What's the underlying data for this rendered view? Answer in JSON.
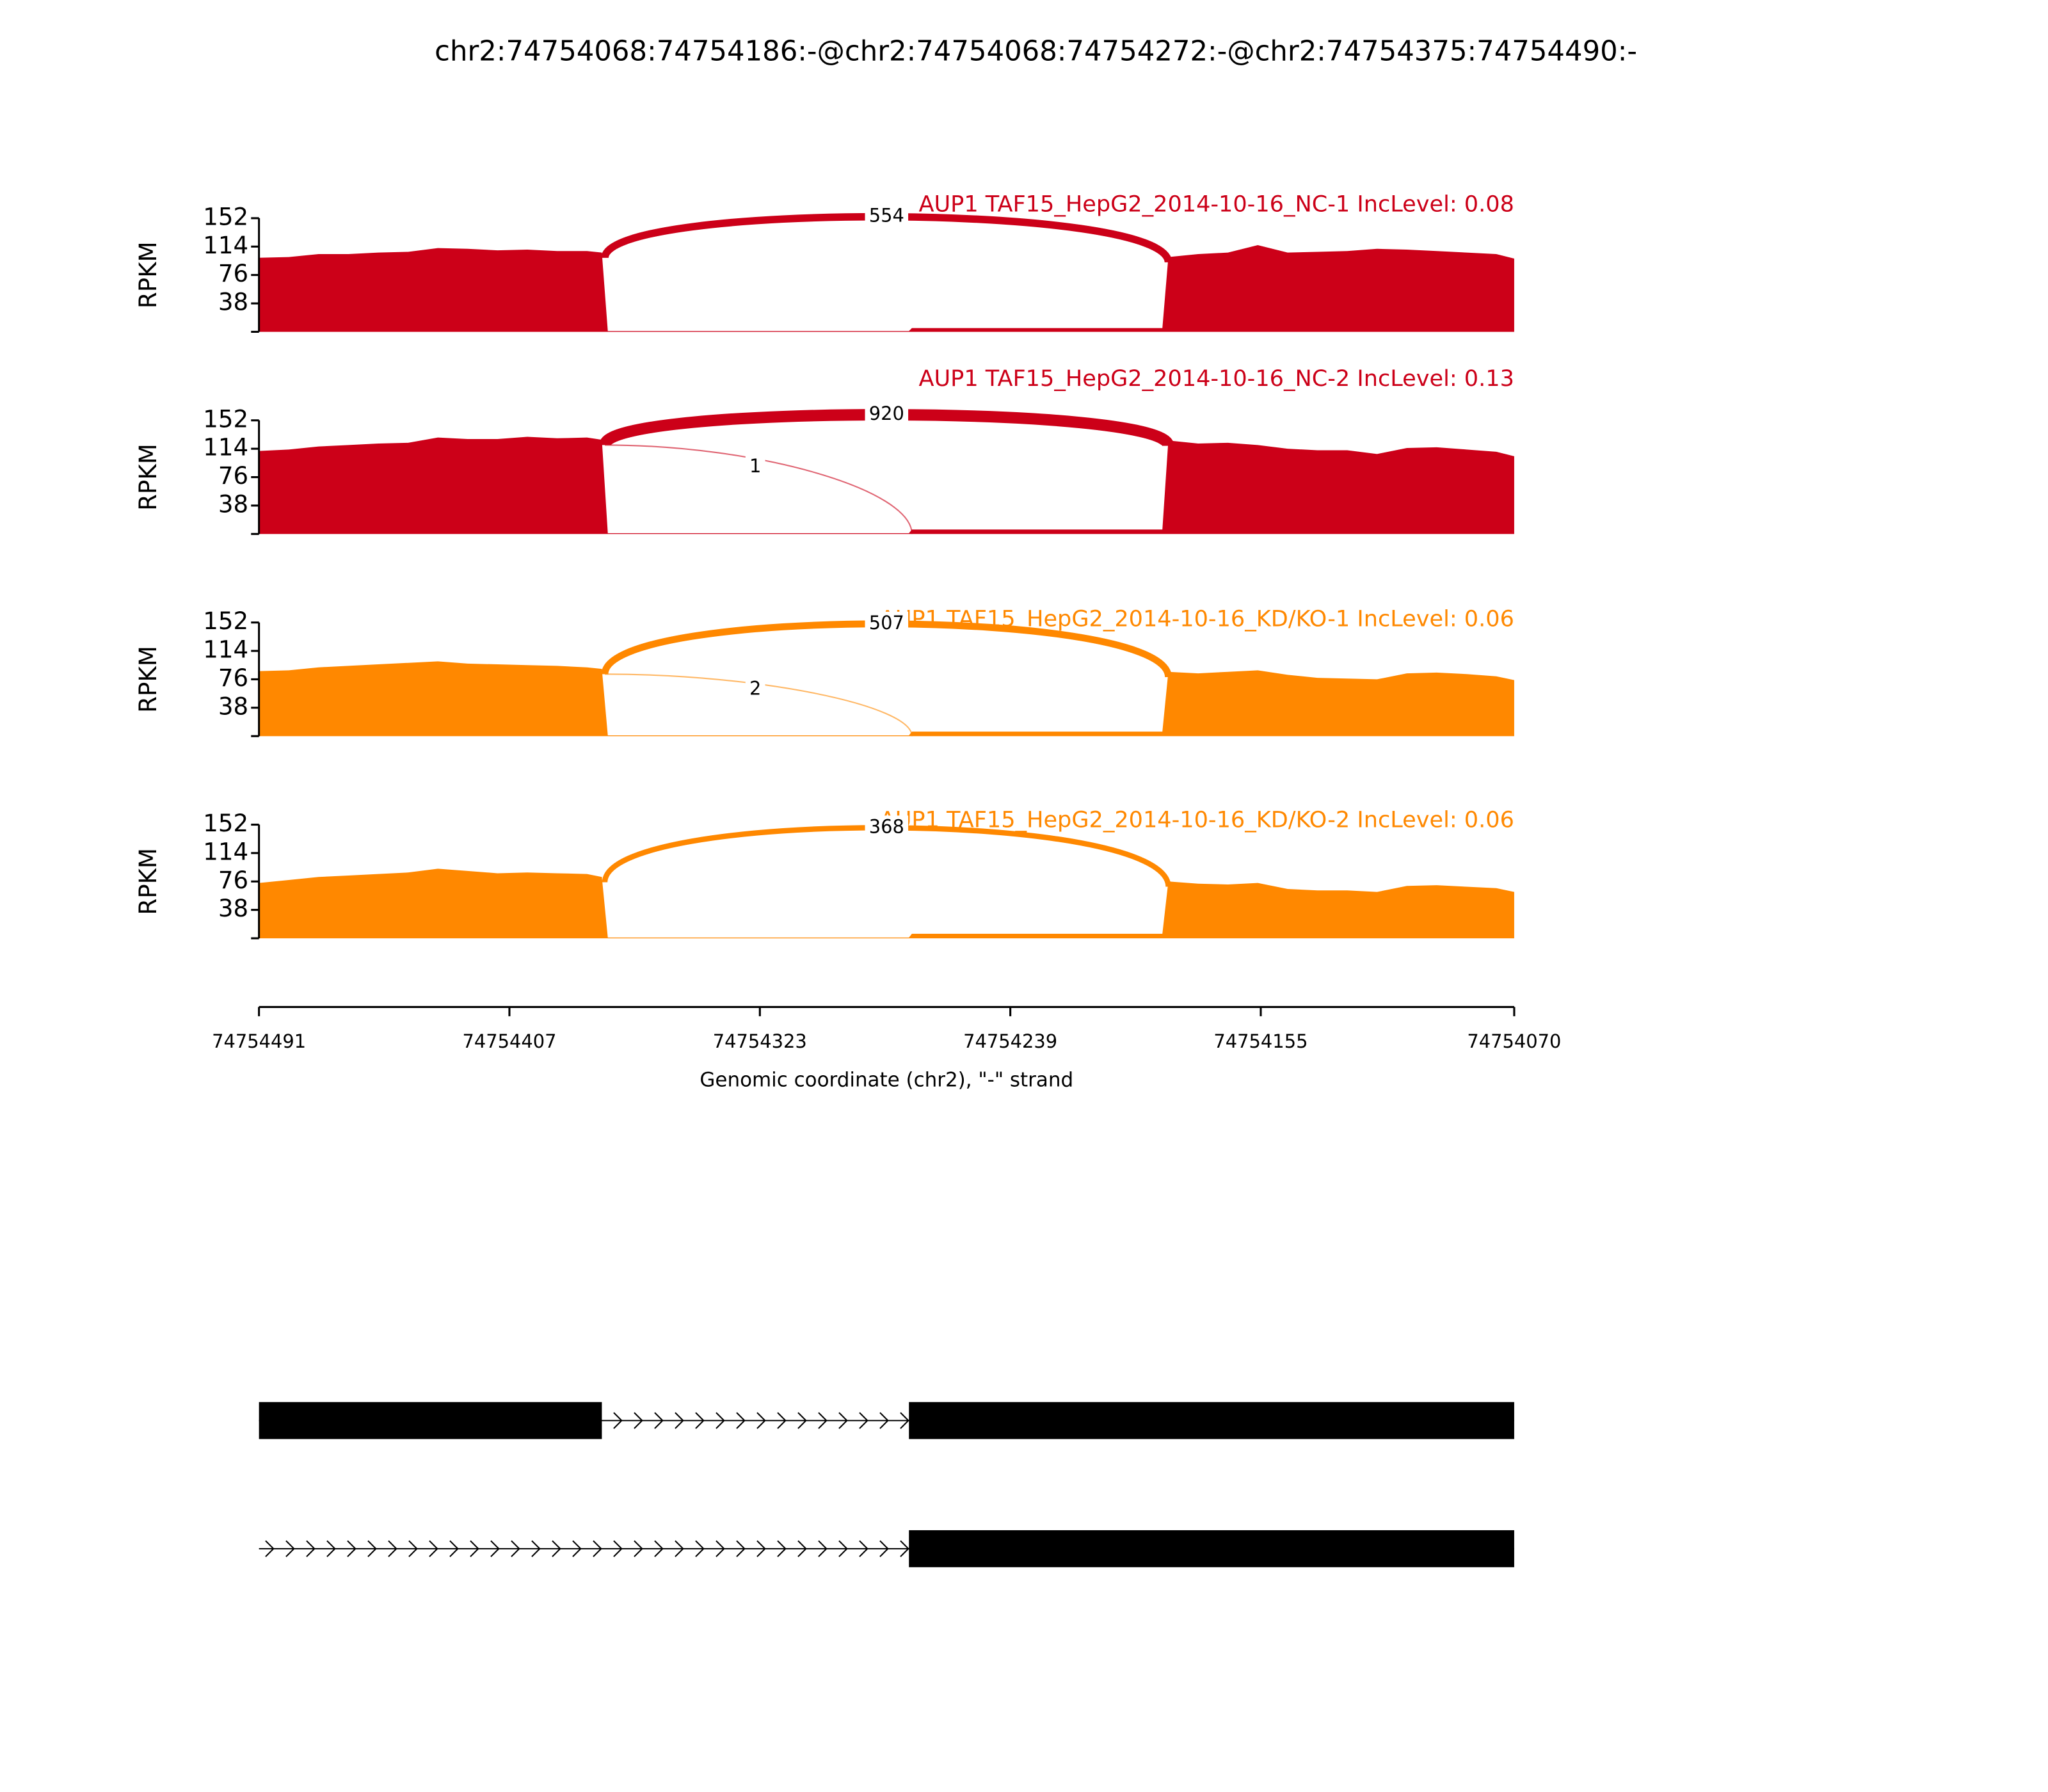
{
  "chart_data": {
    "type": "sashimi",
    "title": "chr2:74754068:74754186:-@chr2:74754068:74754272:-@chr2:74754375:74754490:-",
    "xlabel": "Genomic coordinate (chr2), \"-\" strand",
    "xlim": [
      74754491,
      74754070
    ],
    "xticks": [
      74754491,
      74754407,
      74754323,
      74754239,
      74754155,
      74754070
    ],
    "ylabel": "RPKM",
    "x": [
      74754491,
      74754481,
      74754471,
      74754461,
      74754451,
      74754441,
      74754431,
      74754421,
      74754411,
      74754401,
      74754391,
      74754381,
      74754376,
      74754374,
      74754330,
      74754290,
      74754273,
      74754272,
      74754230,
      74754188,
      74754186,
      74754176,
      74754166,
      74754156,
      74754146,
      74754136,
      74754126,
      74754116,
      74754106,
      74754096,
      74754086,
      74754076,
      74754070
    ],
    "tracks": [
      {
        "name": "AUP1 TAF15_HepG2_2014-10-16_NC-1 IncLevel: 0.08",
        "color": "#cc0018",
        "ylim": [
          0,
          152
        ],
        "yticks": [
          38,
          76,
          114,
          152
        ],
        "values": [
          99,
          100,
          104,
          104,
          106,
          107,
          112,
          111,
          109,
          110,
          108,
          108,
          106,
          1,
          1,
          1,
          1,
          5,
          5,
          5,
          100,
          104,
          106,
          116,
          106,
          107,
          108,
          111,
          110,
          108,
          106,
          104,
          98
        ],
        "junctions": [
          {
            "count": 554,
            "from": 74754375,
            "to": 74754186
          }
        ]
      },
      {
        "name": "AUP1 TAF15_HepG2_2014-10-16_NC-2 IncLevel: 0.13",
        "color": "#cc0018",
        "ylim": [
          0,
          152
        ],
        "yticks": [
          38,
          76,
          114,
          152
        ],
        "values": [
          111,
          113,
          117,
          119,
          121,
          122,
          129,
          127,
          127,
          130,
          128,
          129,
          126,
          1,
          1,
          1,
          1,
          6,
          6,
          6,
          125,
          121,
          122,
          119,
          114,
          112,
          112,
          107,
          115,
          116,
          113,
          110,
          104
        ],
        "junctions": [
          {
            "count": 920,
            "from": 74754375,
            "to": 74754186
          },
          {
            "count": 1,
            "from": 74754375,
            "to": 74754272
          }
        ]
      },
      {
        "name": "AUP1 TAF15_HepG2_2014-10-16_KD/KO-1 IncLevel: 0.06",
        "color": "#ff8800",
        "ylim": [
          0,
          152
        ],
        "yticks": [
          38,
          76,
          114,
          152
        ],
        "values": [
          87,
          88,
          92,
          94,
          96,
          98,
          100,
          97,
          96,
          95,
          94,
          92,
          90,
          1,
          1,
          1,
          1,
          6,
          6,
          6,
          86,
          84,
          86,
          88,
          82,
          78,
          77,
          76,
          84,
          85,
          83,
          80,
          75
        ],
        "junctions": [
          {
            "count": 507,
            "from": 74754375,
            "to": 74754186
          },
          {
            "count": 2,
            "from": 74754375,
            "to": 74754272
          }
        ]
      },
      {
        "name": "AUP1 TAF15_HepG2_2014-10-16_KD/KO-2 IncLevel: 0.06",
        "color": "#ff8800",
        "ylim": [
          0,
          152
        ],
        "yticks": [
          38,
          76,
          114,
          152
        ],
        "values": [
          74,
          78,
          82,
          84,
          86,
          88,
          93,
          90,
          87,
          88,
          87,
          86,
          82,
          1,
          1,
          1,
          1,
          6,
          6,
          6,
          76,
          73,
          72,
          74,
          66,
          64,
          64,
          62,
          70,
          71,
          69,
          67,
          62
        ],
        "junctions": [
          {
            "count": 368,
            "from": 74754375,
            "to": 74754186
          }
        ]
      }
    ],
    "transcripts": [
      {
        "exons": [
          [
            74754491,
            74754376
          ],
          [
            74754273,
            74754070
          ]
        ]
      },
      {
        "exons": [
          [
            74754273,
            74754070
          ]
        ]
      }
    ]
  }
}
